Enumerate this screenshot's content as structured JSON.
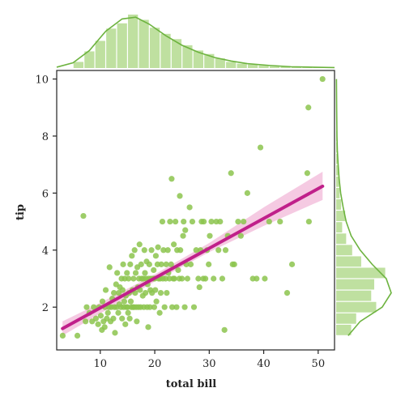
{
  "chart_data": {
    "type": "scatter",
    "title": "",
    "xlabel": "total bill",
    "ylabel": "tip",
    "xlim": [
      2,
      53
    ],
    "ylim": [
      0.5,
      10.3
    ],
    "xticks": [
      10,
      20,
      30,
      40,
      50
    ],
    "yticks": [
      2,
      4,
      6,
      8,
      10
    ],
    "grid": false,
    "colors": {
      "points": "#8cc44e",
      "regression_line": "#c0208a",
      "confidence_band": "#f2b8d8",
      "hist_bars": "#bfe0a0",
      "kde_line": "#6db33f"
    },
    "points": [
      [
        3.1,
        1.0
      ],
      [
        5.8,
        1.0
      ],
      [
        6.9,
        5.2
      ],
      [
        7.3,
        1.5
      ],
      [
        7.5,
        2.0
      ],
      [
        8.0,
        1.8
      ],
      [
        8.5,
        1.5
      ],
      [
        8.8,
        2.0
      ],
      [
        9.2,
        1.6
      ],
      [
        9.6,
        1.4
      ],
      [
        9.8,
        2.0
      ],
      [
        10.1,
        1.7
      ],
      [
        10.3,
        1.2
      ],
      [
        10.4,
        2.2
      ],
      [
        10.6,
        1.5
      ],
      [
        10.8,
        1.3
      ],
      [
        10.9,
        2.0
      ],
      [
        11.0,
        2.6
      ],
      [
        11.2,
        1.6
      ],
      [
        11.4,
        1.8
      ],
      [
        11.6,
        2.0
      ],
      [
        11.7,
        3.4
      ],
      [
        11.9,
        1.5
      ],
      [
        12.0,
        2.0
      ],
      [
        12.2,
        2.3
      ],
      [
        12.4,
        1.6
      ],
      [
        12.5,
        2.5
      ],
      [
        12.6,
        2.0
      ],
      [
        12.7,
        1.1
      ],
      [
        12.9,
        2.8
      ],
      [
        13.0,
        2.0
      ],
      [
        13.1,
        3.2
      ],
      [
        13.3,
        1.8
      ],
      [
        13.4,
        2.5
      ],
      [
        13.5,
        2.1
      ],
      [
        13.6,
        2.7
      ],
      [
        13.8,
        2.0
      ],
      [
        13.9,
        3.0
      ],
      [
        14.0,
        1.6
      ],
      [
        14.1,
        2.6
      ],
      [
        14.2,
        3.5
      ],
      [
        14.3,
        2.0
      ],
      [
        14.4,
        2.2
      ],
      [
        14.5,
        3.0
      ],
      [
        14.6,
        1.4
      ],
      [
        14.7,
        2.4
      ],
      [
        14.8,
        2.0
      ],
      [
        14.9,
        3.2
      ],
      [
        15.0,
        2.0
      ],
      [
        15.1,
        1.8
      ],
      [
        15.2,
        3.0
      ],
      [
        15.3,
        2.5
      ],
      [
        15.4,
        1.6
      ],
      [
        15.5,
        3.5
      ],
      [
        15.6,
        2.2
      ],
      [
        15.7,
        2.0
      ],
      [
        15.8,
        3.8
      ],
      [
        15.9,
        2.6
      ],
      [
        16.0,
        2.0
      ],
      [
        16.1,
        3.0
      ],
      [
        16.2,
        2.0
      ],
      [
        16.3,
        4.0
      ],
      [
        16.4,
        2.5
      ],
      [
        16.5,
        3.2
      ],
      [
        16.6,
        2.0
      ],
      [
        16.7,
        1.5
      ],
      [
        16.8,
        3.4
      ],
      [
        16.9,
        2.7
      ],
      [
        17.0,
        2.0
      ],
      [
        17.1,
        3.0
      ],
      [
        17.2,
        4.2
      ],
      [
        17.3,
        2.6
      ],
      [
        17.4,
        2.0
      ],
      [
        17.5,
        3.5
      ],
      [
        17.6,
        3.0
      ],
      [
        17.8,
        2.4
      ],
      [
        17.9,
        3.0
      ],
      [
        18.0,
        2.0
      ],
      [
        18.1,
        4.0
      ],
      [
        18.2,
        3.2
      ],
      [
        18.3,
        2.5
      ],
      [
        18.4,
        3.0
      ],
      [
        18.5,
        3.6
      ],
      [
        18.6,
        2.0
      ],
      [
        18.7,
        2.8
      ],
      [
        18.8,
        1.3
      ],
      [
        18.9,
        3.0
      ],
      [
        19.0,
        3.5
      ],
      [
        19.1,
        2.0
      ],
      [
        19.2,
        2.6
      ],
      [
        19.3,
        3.0
      ],
      [
        19.4,
        4.0
      ],
      [
        19.5,
        2.5
      ],
      [
        19.7,
        3.0
      ],
      [
        19.8,
        3.3
      ],
      [
        19.9,
        2.0
      ],
      [
        20.0,
        3.0
      ],
      [
        20.1,
        2.6
      ],
      [
        20.2,
        3.8
      ],
      [
        20.3,
        2.2
      ],
      [
        20.5,
        3.5
      ],
      [
        20.6,
        4.1
      ],
      [
        20.7,
        3.0
      ],
      [
        20.9,
        1.8
      ],
      [
        21.0,
        3.0
      ],
      [
        21.1,
        2.5
      ],
      [
        21.2,
        3.5
      ],
      [
        21.4,
        5.0
      ],
      [
        21.5,
        3.0
      ],
      [
        21.6,
        4.0
      ],
      [
        21.8,
        2.0
      ],
      [
        22.0,
        3.0
      ],
      [
        22.1,
        3.5
      ],
      [
        22.2,
        2.5
      ],
      [
        22.4,
        4.0
      ],
      [
        22.5,
        3.2
      ],
      [
        22.7,
        3.0
      ],
      [
        22.8,
        5.0
      ],
      [
        23.0,
        3.5
      ],
      [
        23.1,
        6.5
      ],
      [
        23.2,
        2.0
      ],
      [
        23.4,
        3.0
      ],
      [
        23.5,
        4.2
      ],
      [
        23.6,
        3.0
      ],
      [
        23.8,
        5.0
      ],
      [
        24.0,
        2.0
      ],
      [
        24.1,
        4.0
      ],
      [
        24.3,
        3.3
      ],
      [
        24.5,
        3.0
      ],
      [
        24.6,
        5.9
      ],
      [
        24.7,
        4.0
      ],
      [
        25.0,
        3.0
      ],
      [
        25.2,
        4.5
      ],
      [
        25.3,
        5.0
      ],
      [
        25.5,
        2.0
      ],
      [
        25.6,
        4.7
      ],
      [
        25.8,
        3.5
      ],
      [
        26.0,
        3.0
      ],
      [
        26.4,
        5.5
      ],
      [
        26.6,
        3.5
      ],
      [
        26.9,
        5.0
      ],
      [
        27.2,
        2.0
      ],
      [
        27.6,
        4.0
      ],
      [
        28.0,
        3.0
      ],
      [
        28.2,
        2.7
      ],
      [
        28.4,
        4.0
      ],
      [
        28.6,
        5.0
      ],
      [
        28.9,
        3.0
      ],
      [
        29.0,
        5.0
      ],
      [
        29.3,
        3.0
      ],
      [
        29.6,
        4.0
      ],
      [
        29.9,
        3.5
      ],
      [
        30.1,
        4.5
      ],
      [
        30.4,
        5.0
      ],
      [
        30.8,
        3.0
      ],
      [
        31.3,
        5.0
      ],
      [
        31.7,
        4.0
      ],
      [
        32.0,
        5.0
      ],
      [
        32.4,
        3.0
      ],
      [
        32.8,
        1.2
      ],
      [
        33.0,
        4.0
      ],
      [
        33.4,
        4.5
      ],
      [
        34.0,
        6.7
      ],
      [
        34.3,
        3.5
      ],
      [
        34.6,
        3.5
      ],
      [
        35.3,
        5.0
      ],
      [
        35.8,
        4.5
      ],
      [
        36.3,
        5.0
      ],
      [
        37.0,
        6.0
      ],
      [
        38.0,
        3.0
      ],
      [
        38.7,
        3.0
      ],
      [
        39.4,
        7.6
      ],
      [
        40.2,
        3.0
      ],
      [
        41.0,
        5.0
      ],
      [
        43.0,
        5.0
      ],
      [
        44.3,
        2.5
      ],
      [
        45.2,
        3.5
      ],
      [
        48.0,
        6.7
      ],
      [
        48.2,
        9.0
      ],
      [
        48.3,
        5.0
      ],
      [
        50.8,
        10.0
      ]
    ],
    "regression": {
      "x0": 3.07,
      "y0": 1.25,
      "x1": 50.81,
      "y1": 6.24
    },
    "confidence_band": {
      "x": [
        3.07,
        10,
        20,
        30,
        40,
        50.81
      ],
      "lower": [
        1.0,
        1.78,
        2.9,
        3.93,
        4.85,
        5.76
      ],
      "upper": [
        1.5,
        2.15,
        3.15,
        4.25,
        5.5,
        6.75
      ]
    },
    "marginal_x": {
      "bins": [
        [
          5,
          7,
          0.7
        ],
        [
          7,
          9,
          1.9
        ],
        [
          9,
          11,
          3.1
        ],
        [
          11,
          13,
          4.5
        ],
        [
          13,
          15,
          5.1
        ],
        [
          15,
          17,
          6.1
        ],
        [
          17,
          19,
          5.5
        ],
        [
          19,
          21,
          4.6
        ],
        [
          21,
          23,
          3.9
        ],
        [
          23,
          25,
          3.3
        ],
        [
          25,
          27,
          2.6
        ],
        [
          27,
          29,
          2.0
        ],
        [
          29,
          31,
          1.6
        ],
        [
          31,
          33,
          1.1
        ],
        [
          33,
          35,
          0.7
        ],
        [
          35,
          37,
          0.5
        ],
        [
          37,
          39,
          0.4
        ],
        [
          39,
          41,
          0.3
        ],
        [
          41,
          43,
          0.2
        ],
        [
          43,
          45,
          0.15
        ],
        [
          45,
          47,
          0.1
        ],
        [
          47,
          49,
          0.1
        ],
        [
          49,
          51,
          0.1
        ]
      ],
      "kde": [
        [
          2,
          0.1
        ],
        [
          5,
          0.6
        ],
        [
          8,
          2.0
        ],
        [
          11,
          4.2
        ],
        [
          14,
          5.6
        ],
        [
          16.5,
          5.8
        ],
        [
          19,
          5.0
        ],
        [
          22,
          3.7
        ],
        [
          25,
          2.6
        ],
        [
          28,
          1.8
        ],
        [
          31,
          1.2
        ],
        [
          34,
          0.8
        ],
        [
          37,
          0.5
        ],
        [
          41,
          0.3
        ],
        [
          45,
          0.15
        ],
        [
          49,
          0.1
        ],
        [
          53,
          0.05
        ]
      ]
    },
    "marginal_y": {
      "bins": [
        [
          1.0,
          1.4,
          1.5
        ],
        [
          1.4,
          1.8,
          2.0
        ],
        [
          1.8,
          2.2,
          4.0
        ],
        [
          2.2,
          2.6,
          3.5
        ],
        [
          2.6,
          3.0,
          3.8
        ],
        [
          3.0,
          3.4,
          4.9
        ],
        [
          3.4,
          3.8,
          2.5
        ],
        [
          3.8,
          4.2,
          1.6
        ],
        [
          4.2,
          4.6,
          1.0
        ],
        [
          4.6,
          5.0,
          0.6
        ],
        [
          5.0,
          5.4,
          0.9
        ],
        [
          5.4,
          5.8,
          0.5
        ],
        [
          5.8,
          6.2,
          0.35
        ],
        [
          6.2,
          6.6,
          0.3
        ],
        [
          6.6,
          7.0,
          0.25
        ],
        [
          7.0,
          7.4,
          0.15
        ],
        [
          7.4,
          7.8,
          0.12
        ],
        [
          7.8,
          8.2,
          0.1
        ]
      ],
      "kde": [
        [
          1.0,
          1.2
        ],
        [
          1.5,
          2.4
        ],
        [
          2.0,
          4.6
        ],
        [
          2.5,
          5.5
        ],
        [
          3.0,
          5.0
        ],
        [
          3.5,
          3.6
        ],
        [
          4.0,
          2.4
        ],
        [
          4.5,
          1.5
        ],
        [
          5.0,
          1.0
        ],
        [
          5.5,
          0.7
        ],
        [
          6.0,
          0.45
        ],
        [
          6.5,
          0.3
        ],
        [
          7.0,
          0.2
        ],
        [
          7.5,
          0.12
        ],
        [
          8.0,
          0.08
        ],
        [
          9.0,
          0.05
        ],
        [
          10.0,
          0.03
        ]
      ]
    }
  }
}
